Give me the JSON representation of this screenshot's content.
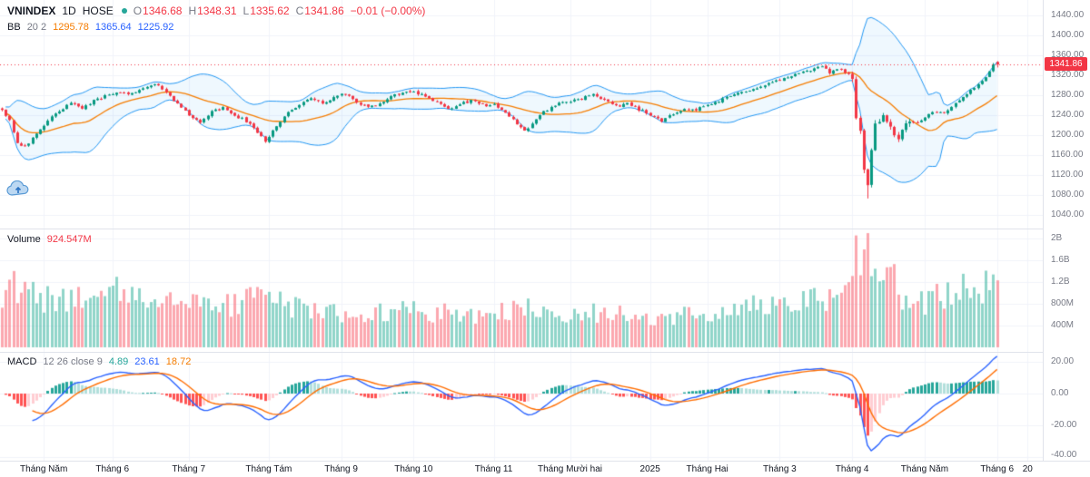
{
  "header": {
    "symbol": "VNINDEX",
    "interval": "1D",
    "exchange": "HOSE",
    "ohlc": {
      "o_label": "O",
      "o": "1346.68",
      "h_label": "H",
      "h": "1348.31",
      "l_label": "L",
      "l": "1335.62",
      "c_label": "C",
      "c": "1341.86",
      "change": "−0.01 (−0.00%)"
    }
  },
  "indicators": {
    "bb": {
      "name": "BB",
      "params": "20 2",
      "basis": "1295.78",
      "upper": "1365.64",
      "lower": "1225.92"
    },
    "volume": {
      "name": "Volume",
      "value": "924.547M"
    },
    "macd": {
      "name": "MACD",
      "params": "12 26 close 9",
      "hist": "4.89",
      "macd": "23.61",
      "signal": "18.72"
    }
  },
  "axes": {
    "price_ticks": [
      "1440.00",
      "1400.00",
      "1360.00",
      "1320.00",
      "1280.00",
      "1240.00",
      "1200.00",
      "1160.00",
      "1120.00",
      "1080.00",
      "1040.00"
    ],
    "volume_ticks": [
      "2B",
      "1.6B",
      "1.2B",
      "800M",
      "400M"
    ],
    "macd_ticks": [
      "20.00",
      "0.00",
      "-20.00",
      "-40.00"
    ],
    "time_labels": [
      "Tháng Năm",
      "Tháng 6",
      "Tháng 7",
      "Tháng Tám",
      "Tháng 9",
      "Tháng 10",
      "Tháng 11",
      "Tháng Mười hai",
      "2025",
      "Tháng Hai",
      "Tháng 3",
      "Tháng 4",
      "Tháng Năm",
      "Tháng 6"
    ],
    "time_extra": "20",
    "last_price": "1341.86"
  },
  "colors": {
    "up": "#089981",
    "down": "#f23645",
    "vol_up": "rgba(34,171,148,0.5)",
    "vol_down": "rgba(247,82,95,0.5)",
    "bb_line": "#2196f3",
    "bb_fill": "rgba(33,150,243,0.07)",
    "bb_basis": "#f57c00",
    "macd_line": "#2962ff",
    "macd_signal": "#ff6d00",
    "hist_up_grow": "#26a69a",
    "hist_up_fade": "#b2dfdb",
    "hist_dn_grow": "#ff5252",
    "hist_dn_fade": "#ffcdd2",
    "grid": "#f0f3fa",
    "separator": "#e0e3eb",
    "axis_text": "#787b86",
    "text": "#131722",
    "last_price_bg": "#f23645"
  },
  "chart_data": {
    "type": "candlestick",
    "title": "VNINDEX 1D HOSE",
    "symbol": "VNINDEX",
    "interval": "1D",
    "price_axis_range": [
      1040,
      1440
    ],
    "volume_axis_range_millions": [
      0,
      2000
    ],
    "macd_axis_range": [
      -40,
      20
    ],
    "candle_count": 262,
    "y_ticks": {
      "price": [
        1440,
        1400,
        1360,
        1320,
        1280,
        1240,
        1200,
        1160,
        1120,
        1080,
        1040
      ],
      "volume_millions": [
        2000,
        1600,
        1200,
        800,
        400
      ],
      "macd": [
        20,
        0,
        -20,
        -40
      ]
    },
    "x_axis": {
      "labels": [
        "Tháng Năm",
        "Tháng 6",
        "Tháng 7",
        "Tháng Tám",
        "Tháng 9",
        "Tháng 10",
        "Tháng 11",
        "Tháng Mười hai",
        "2025",
        "Tháng Hai",
        "Tháng 3",
        "Tháng 4",
        "Tháng Năm",
        "Tháng 6"
      ],
      "month_start_indices": [
        11,
        29,
        49,
        70,
        89,
        108,
        129,
        149,
        170,
        185,
        204,
        223,
        242,
        261
      ],
      "extra_label": {
        "text": "20",
        "index": 269
      }
    },
    "last_candle": {
      "open": 1346.68,
      "high": 1348.31,
      "low": 1335.62,
      "close": 1341.86
    },
    "crash_low": {
      "index": 227,
      "value": 1073
    },
    "indicator_params": {
      "bollinger": {
        "length": 20,
        "mult": 2
      },
      "macd": {
        "fast": 12,
        "slow": 26,
        "signal": 9
      }
    },
    "close_anchors": [
      [
        0,
        1252
      ],
      [
        2,
        1230
      ],
      [
        4,
        1185
      ],
      [
        6,
        1178
      ],
      [
        9,
        1200
      ],
      [
        12,
        1228
      ],
      [
        15,
        1250
      ],
      [
        18,
        1262
      ],
      [
        21,
        1255
      ],
      [
        24,
        1268
      ],
      [
        27,
        1278
      ],
      [
        30,
        1288
      ],
      [
        33,
        1280
      ],
      [
        36,
        1290
      ],
      [
        39,
        1298
      ],
      [
        41,
        1300
      ],
      [
        43,
        1288
      ],
      [
        46,
        1262
      ],
      [
        49,
        1240
      ],
      [
        52,
        1228
      ],
      [
        55,
        1246
      ],
      [
        58,
        1254
      ],
      [
        61,
        1240
      ],
      [
        64,
        1228
      ],
      [
        67,
        1205
      ],
      [
        69,
        1188
      ],
      [
        72,
        1220
      ],
      [
        75,
        1245
      ],
      [
        78,
        1262
      ],
      [
        81,
        1272
      ],
      [
        84,
        1264
      ],
      [
        87,
        1276
      ],
      [
        90,
        1282
      ],
      [
        93,
        1268
      ],
      [
        96,
        1254
      ],
      [
        99,
        1264
      ],
      [
        102,
        1276
      ],
      [
        105,
        1286
      ],
      [
        108,
        1288
      ],
      [
        111,
        1278
      ],
      [
        114,
        1266
      ],
      [
        117,
        1252
      ],
      [
        120,
        1262
      ],
      [
        123,
        1268
      ],
      [
        126,
        1260
      ],
      [
        129,
        1262
      ],
      [
        131,
        1248
      ],
      [
        134,
        1230
      ],
      [
        137,
        1208
      ],
      [
        140,
        1232
      ],
      [
        143,
        1252
      ],
      [
        146,
        1264
      ],
      [
        149,
        1268
      ],
      [
        152,
        1274
      ],
      [
        155,
        1280
      ],
      [
        158,
        1268
      ],
      [
        161,
        1258
      ],
      [
        164,
        1264
      ],
      [
        167,
        1252
      ],
      [
        170,
        1240
      ],
      [
        173,
        1230
      ],
      [
        176,
        1244
      ],
      [
        179,
        1254
      ],
      [
        182,
        1250
      ],
      [
        185,
        1260
      ],
      [
        188,
        1268
      ],
      [
        191,
        1278
      ],
      [
        194,
        1286
      ],
      [
        197,
        1294
      ],
      [
        200,
        1300
      ],
      [
        203,
        1308
      ],
      [
        206,
        1316
      ],
      [
        209,
        1324
      ],
      [
        212,
        1330
      ],
      [
        215,
        1336
      ],
      [
        217,
        1326
      ],
      [
        219,
        1332
      ],
      [
        221,
        1328
      ],
      [
        223,
        1318
      ],
      [
        224,
        1230
      ],
      [
        225,
        1212
      ],
      [
        226,
        1132
      ],
      [
        227,
        1094
      ],
      [
        228,
        1168
      ],
      [
        229,
        1222
      ],
      [
        231,
        1240
      ],
      [
        233,
        1212
      ],
      [
        235,
        1196
      ],
      [
        237,
        1218
      ],
      [
        239,
        1230
      ],
      [
        241,
        1226
      ],
      [
        243,
        1240
      ],
      [
        245,
        1248
      ],
      [
        247,
        1242
      ],
      [
        249,
        1256
      ],
      [
        251,
        1268
      ],
      [
        253,
        1282
      ],
      [
        255,
        1296
      ],
      [
        257,
        1308
      ],
      [
        258,
        1316
      ],
      [
        259,
        1328
      ],
      [
        260,
        1341.87
      ],
      [
        261,
        1341.86
      ]
    ],
    "volume_anchors_m": [
      [
        0,
        950
      ],
      [
        3,
        1100
      ],
      [
        6,
        1000
      ],
      [
        10,
        850
      ],
      [
        14,
        900
      ],
      [
        18,
        950
      ],
      [
        22,
        880
      ],
      [
        26,
        950
      ],
      [
        30,
        1000
      ],
      [
        34,
        900
      ],
      [
        38,
        950
      ],
      [
        42,
        880
      ],
      [
        46,
        820
      ],
      [
        50,
        780
      ],
      [
        54,
        800
      ],
      [
        58,
        760
      ],
      [
        62,
        820
      ],
      [
        67,
        950
      ],
      [
        70,
        880
      ],
      [
        74,
        780
      ],
      [
        78,
        720
      ],
      [
        82,
        700
      ],
      [
        86,
        660
      ],
      [
        90,
        640
      ],
      [
        94,
        600
      ],
      [
        98,
        620
      ],
      [
        102,
        660
      ],
      [
        106,
        700
      ],
      [
        110,
        680
      ],
      [
        114,
        640
      ],
      [
        118,
        600
      ],
      [
        122,
        640
      ],
      [
        126,
        600
      ],
      [
        129,
        620
      ],
      [
        132,
        680
      ],
      [
        135,
        760
      ],
      [
        138,
        700
      ],
      [
        142,
        640
      ],
      [
        146,
        600
      ],
      [
        150,
        580
      ],
      [
        154,
        620
      ],
      [
        158,
        640
      ],
      [
        162,
        600
      ],
      [
        166,
        520
      ],
      [
        170,
        480
      ],
      [
        174,
        540
      ],
      [
        178,
        580
      ],
      [
        182,
        620
      ],
      [
        186,
        650
      ],
      [
        190,
        690
      ],
      [
        194,
        720
      ],
      [
        198,
        760
      ],
      [
        202,
        800
      ],
      [
        206,
        840
      ],
      [
        210,
        880
      ],
      [
        214,
        900
      ],
      [
        218,
        840
      ],
      [
        221,
        900
      ],
      [
        223,
        1350
      ],
      [
        224,
        1900
      ],
      [
        225,
        1700
      ],
      [
        226,
        1550
      ],
      [
        227,
        1800
      ],
      [
        228,
        1600
      ],
      [
        229,
        1200
      ],
      [
        231,
        1000
      ],
      [
        233,
        1400
      ],
      [
        234,
        1650
      ],
      [
        235,
        1050
      ],
      [
        237,
        880
      ],
      [
        239,
        820
      ],
      [
        241,
        800
      ],
      [
        243,
        880
      ],
      [
        245,
        940
      ],
      [
        247,
        900
      ],
      [
        249,
        980
      ],
      [
        251,
        1040
      ],
      [
        253,
        1080
      ],
      [
        255,
        1120
      ],
      [
        257,
        1080
      ],
      [
        259,
        1150
      ],
      [
        261,
        950
      ]
    ]
  }
}
